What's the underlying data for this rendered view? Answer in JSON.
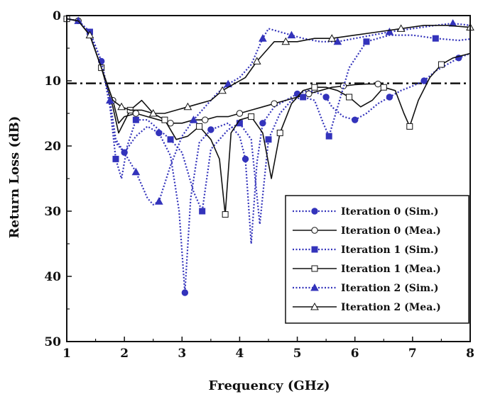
{
  "chart_data": {
    "type": "line",
    "xlabel": "Frequency (GHz)",
    "ylabel": "Return Loss (dB)",
    "xlim": [
      1,
      8
    ],
    "ylim": [
      0,
      50
    ],
    "y_inverted": true,
    "xticks": [
      "1",
      "2",
      "3",
      "4",
      "5",
      "6",
      "7",
      "8"
    ],
    "yticks": [
      "0",
      "10",
      "20",
      "30",
      "40",
      "50"
    ],
    "grid": false,
    "legend_position": "bottom-right",
    "reference_line": {
      "y": 10.4,
      "style": "dash-dot"
    },
    "series": [
      {
        "name": "Iteration 0 (Sim.)",
        "color": "#3333bb",
        "linestyle": "dotted",
        "marker": "circle-filled",
        "x": [
          1.0,
          1.2,
          1.4,
          1.6,
          1.75,
          1.85,
          2.0,
          2.2,
          2.4,
          2.6,
          2.8,
          2.95,
          3.05,
          3.15,
          3.3,
          3.5,
          3.8,
          4.0,
          4.1,
          4.2,
          4.3,
          4.4,
          4.6,
          4.8,
          5.0,
          5.2,
          5.4,
          5.5,
          5.6,
          5.8,
          6.0,
          6.2,
          6.4,
          6.6,
          6.8,
          7.0,
          7.2,
          7.4,
          7.6,
          7.8,
          8.0
        ],
        "y": [
          0.5,
          0.8,
          2.5,
          7.0,
          14.0,
          19.5,
          21.0,
          18.5,
          17.0,
          18.0,
          21.5,
          30.0,
          42.5,
          28.0,
          19.5,
          17.5,
          16.5,
          18.5,
          22.0,
          35.0,
          22.5,
          16.5,
          14.0,
          13.0,
          12.0,
          11.5,
          12.0,
          12.5,
          14.0,
          15.5,
          16.0,
          15.0,
          13.5,
          12.5,
          11.5,
          10.8,
          10.0,
          8.5,
          7.5,
          6.5,
          5.8
        ]
      },
      {
        "name": "Iteration 0 (Mea.)",
        "color": "#111111",
        "linestyle": "solid",
        "marker": "circle-open",
        "x": [
          1.0,
          1.2,
          1.4,
          1.6,
          1.8,
          1.9,
          2.0,
          2.2,
          2.4,
          2.6,
          2.8,
          3.0,
          3.2,
          3.4,
          3.6,
          3.8,
          4.0,
          4.2,
          4.4,
          4.6,
          4.8,
          5.0,
          5.2,
          5.4,
          5.6,
          5.8,
          6.0,
          6.2,
          6.4
        ],
        "y": [
          0.5,
          0.8,
          3.0,
          8.0,
          13.0,
          16.5,
          15.5,
          15.0,
          15.5,
          16.0,
          16.5,
          16.5,
          16.0,
          16.0,
          15.5,
          15.5,
          15.0,
          14.5,
          14.0,
          13.5,
          13.0,
          12.5,
          12.0,
          11.5,
          11.0,
          10.8,
          10.6,
          10.5,
          10.5
        ]
      },
      {
        "name": "Iteration 1 (Sim.)",
        "color": "#3333bb",
        "linestyle": "dotted",
        "marker": "square-filled",
        "x": [
          1.0,
          1.2,
          1.4,
          1.6,
          1.75,
          1.85,
          1.95,
          2.05,
          2.2,
          2.4,
          2.6,
          2.8,
          3.0,
          3.2,
          3.35,
          3.5,
          3.8,
          4.0,
          4.2,
          4.35,
          4.5,
          4.7,
          4.9,
          5.1,
          5.3,
          5.45,
          5.55,
          5.7,
          5.9,
          6.2,
          6.6,
          7.0,
          7.4,
          7.8,
          8.0
        ],
        "y": [
          0.5,
          0.8,
          2.5,
          7.0,
          14.0,
          22.0,
          25.0,
          20.0,
          16.0,
          16.0,
          17.5,
          19.0,
          21.0,
          27.0,
          30.0,
          20.5,
          17.5,
          16.5,
          19.0,
          32.0,
          19.0,
          15.0,
          13.0,
          12.5,
          13.0,
          16.5,
          18.5,
          14.0,
          8.0,
          4.0,
          3.0,
          3.0,
          3.5,
          3.8,
          3.6
        ]
      },
      {
        "name": "Iteration 1 (Mea.)",
        "color": "#111111",
        "linestyle": "solid",
        "marker": "square-open",
        "x": [
          1.0,
          1.2,
          1.4,
          1.6,
          1.8,
          1.9,
          2.1,
          2.3,
          2.5,
          2.7,
          2.9,
          3.1,
          3.3,
          3.5,
          3.65,
          3.75,
          3.85,
          4.0,
          4.2,
          4.4,
          4.55,
          4.7,
          4.9,
          5.1,
          5.3,
          5.5,
          5.7,
          5.9,
          6.1,
          6.3,
          6.5,
          6.7,
          6.85,
          6.95,
          7.1,
          7.3,
          7.5,
          7.7,
          8.0
        ],
        "y": [
          0.5,
          0.8,
          3.0,
          8.0,
          14.0,
          18.0,
          14.5,
          13.0,
          15.0,
          16.0,
          19.0,
          18.5,
          17.0,
          19.0,
          22.0,
          30.5,
          18.0,
          16.0,
          15.5,
          18.0,
          25.0,
          18.0,
          13.5,
          11.5,
          11.0,
          11.0,
          11.5,
          12.5,
          14.0,
          13.0,
          11.0,
          11.5,
          15.0,
          17.0,
          13.0,
          9.5,
          7.5,
          6.5,
          5.8
        ]
      },
      {
        "name": "Iteration 2 (Sim.)",
        "color": "#3333bb",
        "linestyle": "dotted",
        "marker": "triangle-filled",
        "x": [
          1.0,
          1.2,
          1.4,
          1.6,
          1.75,
          1.85,
          2.0,
          2.2,
          2.4,
          2.5,
          2.6,
          2.8,
          3.0,
          3.2,
          3.4,
          3.6,
          3.8,
          4.0,
          4.2,
          4.4,
          4.5,
          4.7,
          4.9,
          5.1,
          5.4,
          5.7,
          6.0,
          6.3,
          6.6,
          7.0,
          7.4,
          7.7,
          8.0
        ],
        "y": [
          0.5,
          0.8,
          2.5,
          7.0,
          13.0,
          19.0,
          21.0,
          24.0,
          28.0,
          29.0,
          28.5,
          23.0,
          18.5,
          16.0,
          14.0,
          12.0,
          10.5,
          9.5,
          7.5,
          3.5,
          2.0,
          2.5,
          3.0,
          3.5,
          4.0,
          4.0,
          3.5,
          3.0,
          2.5,
          2.0,
          1.5,
          1.2,
          1.5
        ]
      },
      {
        "name": "Iteration 2 (Mea.)",
        "color": "#111111",
        "linestyle": "solid",
        "marker": "triangle-open",
        "x": [
          1.0,
          1.2,
          1.4,
          1.6,
          1.8,
          1.95,
          2.1,
          2.3,
          2.5,
          2.7,
          2.9,
          3.1,
          3.3,
          3.5,
          3.7,
          3.9,
          4.1,
          4.3,
          4.5,
          4.6,
          4.8,
          5.0,
          5.3,
          5.6,
          6.0,
          6.4,
          6.8,
          7.2,
          7.6,
          8.0
        ],
        "y": [
          0.5,
          0.8,
          3.0,
          8.0,
          13.0,
          14.0,
          14.5,
          14.5,
          15.0,
          15.0,
          14.5,
          14.0,
          13.5,
          13.0,
          11.5,
          10.5,
          9.5,
          7.0,
          5.0,
          4.0,
          4.0,
          4.0,
          3.5,
          3.5,
          3.0,
          2.5,
          2.0,
          1.5,
          1.5,
          1.8
        ]
      }
    ]
  }
}
